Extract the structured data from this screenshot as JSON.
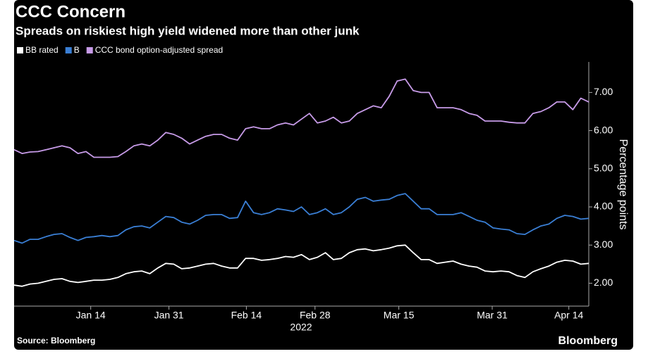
{
  "chart_data": {
    "type": "line",
    "title": "CCC Concern",
    "subtitle": "Spreads on riskiest high yield widened more than other junk",
    "xlabel": "2022",
    "ylabel": "Percentage points",
    "source": "Source: Bloomberg",
    "brand": "Bloomberg",
    "x": [
      0,
      1,
      2,
      3,
      4,
      5,
      6,
      7,
      8,
      9,
      10,
      11,
      12,
      13,
      14,
      15,
      16,
      17,
      18,
      19,
      20,
      21,
      22,
      23,
      24,
      25,
      26,
      27,
      28,
      29,
      30,
      31,
      32,
      33,
      34,
      35,
      36,
      37,
      38,
      39,
      40,
      41,
      42,
      43,
      44,
      45,
      46,
      47,
      48,
      49,
      50,
      51,
      52,
      53,
      54,
      55,
      56,
      57,
      58,
      59,
      60,
      61,
      62,
      63,
      64,
      65,
      66,
      67,
      68,
      69,
      70,
      71,
      72
    ],
    "series": [
      {
        "name": "BB rated",
        "color": "#ffffff",
        "values": [
          1.95,
          1.92,
          1.98,
          2.0,
          2.05,
          2.1,
          2.12,
          2.05,
          2.02,
          2.05,
          2.08,
          2.08,
          2.1,
          2.15,
          2.25,
          2.3,
          2.32,
          2.25,
          2.4,
          2.52,
          2.5,
          2.38,
          2.4,
          2.45,
          2.5,
          2.52,
          2.45,
          2.4,
          2.4,
          2.65,
          2.65,
          2.6,
          2.62,
          2.65,
          2.7,
          2.68,
          2.75,
          2.62,
          2.68,
          2.8,
          2.62,
          2.65,
          2.8,
          2.88,
          2.9,
          2.85,
          2.88,
          2.92,
          2.98,
          3.0,
          2.8,
          2.62,
          2.62,
          2.52,
          2.55,
          2.58,
          2.5,
          2.45,
          2.42,
          2.32,
          2.3,
          2.32,
          2.3,
          2.2,
          2.15,
          2.3,
          2.38,
          2.45,
          2.55,
          2.6,
          2.58,
          2.5,
          2.52
        ]
      },
      {
        "name": "B",
        "color": "#3a7fd5",
        "values": [
          3.12,
          3.05,
          3.15,
          3.15,
          3.22,
          3.28,
          3.3,
          3.2,
          3.12,
          3.2,
          3.22,
          3.25,
          3.22,
          3.25,
          3.4,
          3.48,
          3.5,
          3.45,
          3.6,
          3.75,
          3.72,
          3.6,
          3.55,
          3.65,
          3.78,
          3.8,
          3.8,
          3.7,
          3.72,
          4.15,
          3.85,
          3.8,
          3.85,
          3.95,
          3.92,
          3.88,
          4.0,
          3.8,
          3.85,
          3.95,
          3.8,
          3.85,
          4.0,
          4.2,
          4.25,
          4.15,
          4.18,
          4.2,
          4.3,
          4.35,
          4.15,
          3.95,
          3.95,
          3.8,
          3.8,
          3.8,
          3.85,
          3.75,
          3.65,
          3.6,
          3.45,
          3.42,
          3.4,
          3.3,
          3.28,
          3.4,
          3.5,
          3.55,
          3.7,
          3.78,
          3.75,
          3.68,
          3.7
        ]
      },
      {
        "name": "CCC bond option-adjusted spread",
        "color": "#c79be8",
        "values": [
          5.5,
          5.4,
          5.44,
          5.45,
          5.5,
          5.55,
          5.6,
          5.55,
          5.4,
          5.45,
          5.3,
          5.3,
          5.3,
          5.32,
          5.45,
          5.6,
          5.65,
          5.6,
          5.75,
          5.95,
          5.9,
          5.8,
          5.65,
          5.75,
          5.85,
          5.9,
          5.9,
          5.8,
          5.75,
          6.05,
          6.1,
          6.05,
          6.05,
          6.15,
          6.2,
          6.15,
          6.3,
          6.45,
          6.2,
          6.25,
          6.35,
          6.2,
          6.25,
          6.45,
          6.55,
          6.65,
          6.6,
          6.9,
          7.3,
          7.35,
          7.05,
          7.0,
          7.0,
          6.6,
          6.6,
          6.6,
          6.55,
          6.45,
          6.4,
          6.25,
          6.25,
          6.25,
          6.22,
          6.2,
          6.2,
          6.45,
          6.5,
          6.6,
          6.75,
          6.75,
          6.55,
          6.85,
          6.75
        ]
      }
    ],
    "xlim": [
      0,
      72
    ],
    "xticks": [
      {
        "value": 9.6,
        "label": "Jan 14"
      },
      {
        "value": 19.4,
        "label": "Jan 31"
      },
      {
        "value": 29.1,
        "label": "Feb 14"
      },
      {
        "value": 37.7,
        "label": "Feb 28"
      },
      {
        "value": 48.2,
        "label": "Mar 15"
      },
      {
        "value": 59.9,
        "label": "Mar 31"
      },
      {
        "value": 69.5,
        "label": "Apr 14"
      }
    ],
    "ylim": [
      1.4,
      7.8
    ],
    "yticks": [
      {
        "value": 2,
        "label": "2.00"
      },
      {
        "value": 3,
        "label": "3.00"
      },
      {
        "value": 4,
        "label": "4.00"
      },
      {
        "value": 5,
        "label": "5.00"
      },
      {
        "value": 6,
        "label": "6.00"
      },
      {
        "value": 7,
        "label": "7.00"
      }
    ],
    "grid": false,
    "legend": "top-left"
  }
}
